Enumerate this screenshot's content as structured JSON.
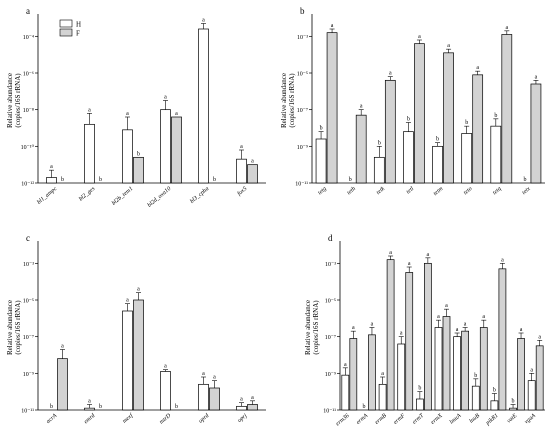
{
  "colors": {
    "H": "#ffffff",
    "F": "#d3d3d3",
    "stroke": "#000000"
  },
  "legend": [
    "H",
    "F"
  ],
  "chart_data": [
    {
      "type": "bar",
      "panel": "a",
      "ylabel": "Relative abundance\n(copies/16S rRNA)",
      "yscale": "log",
      "ylim_exp": [
        -12,
        -3
      ],
      "yticks": [
        "10⁻¹²",
        "10⁻¹⁰",
        "10⁻⁸",
        "10⁻⁶",
        "10⁻⁴"
      ],
      "ytick_exps": [
        -12,
        -10,
        -8,
        -6,
        -4
      ],
      "categories": [
        "bl1_ampc",
        "bl2_ges",
        "bl2b_tem1",
        "bl2d_oxa10",
        "bl3_cpha",
        "fox5"
      ],
      "series": [
        {
          "name": "H",
          "values_exp": [
            -11.7,
            -8.8,
            -9.1,
            -8.0,
            -3.6,
            -10.7
          ],
          "err_exp": [
            -11.3,
            -8.2,
            -8.4,
            -7.5,
            -3.3,
            -10.2
          ],
          "letters": [
            "a",
            "a",
            "a",
            "a",
            "a",
            "a"
          ]
        },
        {
          "name": "F",
          "values_exp": [
            null,
            null,
            -10.6,
            -8.4,
            null,
            -11.0
          ],
          "err_exp": [
            null,
            null,
            null,
            null,
            null,
            null
          ],
          "letters": [
            "b",
            "b",
            "b",
            "a",
            "b",
            "a"
          ]
        }
      ]
    },
    {
      "type": "bar",
      "panel": "b",
      "ylabel": "Relative abundance\n(copies/16S rRNA)",
      "yscale": "log",
      "ylim_exp": [
        -11,
        -2
      ],
      "yticks": [
        "10⁻¹¹",
        "10⁻⁹",
        "10⁻⁷",
        "10⁻⁵",
        "10⁻³"
      ],
      "ytick_exps": [
        -11,
        -9,
        -7,
        -5,
        -3
      ],
      "categories": [
        "tetg",
        "teth",
        "tetk",
        "tetl",
        "tetm",
        "teto",
        "tetq",
        "tetx"
      ],
      "series": [
        {
          "name": "H",
          "values_exp": [
            -8.6,
            null,
            -9.6,
            -8.2,
            -9.0,
            -8.3,
            -7.9,
            null
          ],
          "err_exp": [
            -8.2,
            null,
            -9.0,
            -7.7,
            -8.8,
            -7.9,
            -7.5,
            null
          ],
          "letters": [
            "b",
            "b",
            "b",
            "b",
            "b",
            "b",
            "b",
            "b"
          ]
        },
        {
          "name": "F",
          "values_exp": [
            -2.8,
            -7.3,
            -5.4,
            -3.4,
            -3.9,
            -5.1,
            -2.9,
            -5.6
          ],
          "err_exp": [
            -2.6,
            -7.0,
            -5.2,
            -3.2,
            -3.7,
            -4.9,
            -2.7,
            -5.4
          ],
          "letters": [
            "a",
            "a",
            "a",
            "a",
            "a",
            "a",
            "a",
            "a"
          ]
        }
      ]
    },
    {
      "type": "bar",
      "panel": "c",
      "ylabel": "Relative abundance\n(copies/16S rRNA)",
      "yscale": "log",
      "ylim_exp": [
        -11,
        -2
      ],
      "yticks": [
        "10⁻¹¹",
        "10⁻⁹",
        "10⁻⁷",
        "10⁻⁵",
        "10⁻³"
      ],
      "ytick_exps": [
        -11,
        -9,
        -7,
        -5,
        -3
      ],
      "categories": [
        "acrA",
        "emrd",
        "mexf",
        "mtrD",
        "oprd",
        "oprj"
      ],
      "series": [
        {
          "name": "H",
          "values_exp": [
            null,
            -10.9,
            -5.6,
            -8.9,
            -9.6,
            -10.8
          ],
          "err_exp": [
            null,
            -10.7,
            -5.2,
            -8.8,
            -9.2,
            -10.6
          ],
          "letters": [
            "b",
            "a",
            "a",
            "a",
            "a",
            "a"
          ]
        },
        {
          "name": "F",
          "values_exp": [
            -8.2,
            null,
            -5.0,
            null,
            -9.8,
            -10.7
          ],
          "err_exp": [
            -7.7,
            null,
            -4.6,
            null,
            -9.4,
            -10.5
          ],
          "letters": [
            "a",
            "b",
            "a",
            "b",
            "a",
            "a"
          ]
        }
      ]
    },
    {
      "type": "bar",
      "panel": "d",
      "ylabel": "Relative abundance\n(copies/16S rRNA)",
      "yscale": "log",
      "ylim_exp": [
        -11,
        -2
      ],
      "yticks": [
        "10⁻¹¹",
        "10⁻⁹",
        "10⁻⁷",
        "10⁻⁵",
        "10⁻³"
      ],
      "ytick_exps": [
        -11,
        -9,
        -7,
        -5,
        -3
      ],
      "categories": [
        "erm36",
        "ermA",
        "ermB",
        "ermF",
        "ermT",
        "ermX",
        "lmuA",
        "lnuB",
        "pikR1",
        "vatE",
        "vgaA"
      ],
      "series": [
        {
          "name": "H",
          "values_exp": [
            -9.1,
            null,
            -9.6,
            -7.4,
            -10.4,
            -6.5,
            -7.0,
            -9.7,
            -10.5,
            -10.9,
            -9.4
          ],
          "err_exp": [
            -8.7,
            null,
            -9.2,
            -7.0,
            -10.0,
            -6.1,
            -6.8,
            -9.3,
            -10.1,
            -10.7,
            -9.0
          ],
          "letters": [
            "a",
            "b",
            "a",
            "a",
            "b",
            "a",
            "a",
            "b",
            "b",
            "b",
            "a"
          ]
        },
        {
          "name": "F",
          "values_exp": [
            -7.1,
            -6.9,
            -2.8,
            -3.5,
            -3.0,
            -5.9,
            -6.7,
            -6.5,
            -3.3,
            -7.1,
            -7.5
          ],
          "err_exp": [
            -6.7,
            -6.5,
            -2.6,
            -3.2,
            -2.7,
            -5.5,
            -6.5,
            -6.1,
            -3.0,
            -6.8,
            -7.2
          ],
          "letters": [
            "a",
            "a",
            "a",
            "a",
            "a",
            "a",
            "a",
            "a",
            "a",
            "a",
            "a"
          ]
        }
      ]
    }
  ]
}
